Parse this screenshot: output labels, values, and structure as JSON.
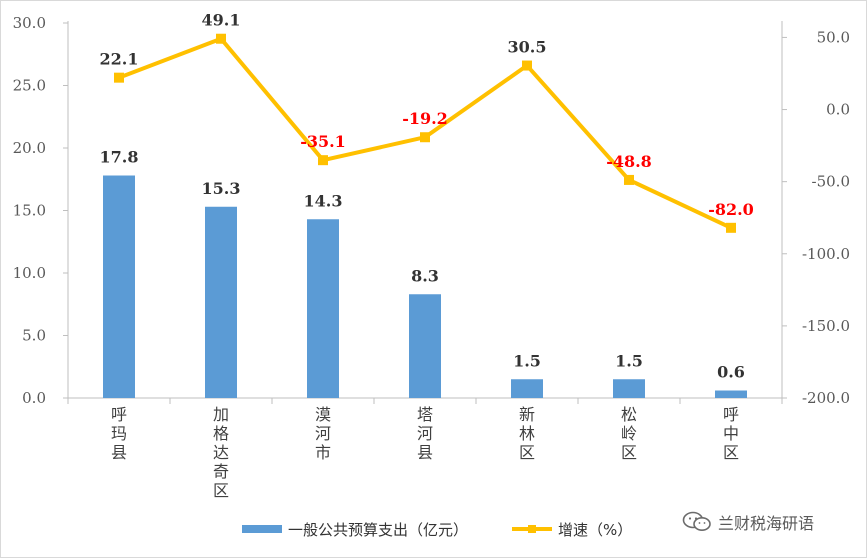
{
  "chart_data": {
    "type": "bar",
    "categories": [
      "呼玛县",
      "加格达奇区",
      "漠河市",
      "塔河县",
      "新林区",
      "松岭区",
      "呼中区"
    ],
    "series": [
      {
        "name": "一般公共预算支出（亿元）",
        "type": "bar",
        "axis": "left",
        "color": "#5b9bd5",
        "values": [
          17.8,
          15.3,
          14.3,
          8.3,
          1.5,
          1.5,
          0.6
        ],
        "labels": [
          "17.8",
          "15.3",
          "14.3",
          "8.3",
          "1.5",
          "1.5",
          "0.6"
        ]
      },
      {
        "name": "增速（%）",
        "type": "line",
        "axis": "right",
        "color": "#ffc000",
        "values": [
          22.1,
          49.1,
          -35.1,
          -19.2,
          30.5,
          -48.8,
          -82.0
        ],
        "labels": [
          "22.1",
          "49.1",
          "-35.1",
          "-19.2",
          "30.5",
          "-48.8",
          "-82.0"
        ]
      }
    ],
    "y_left": {
      "ylim": [
        0,
        30
      ],
      "ticks": [
        "0.0",
        "5.0",
        "10.0",
        "15.0",
        "20.0",
        "25.0",
        "30.0"
      ]
    },
    "y_right": {
      "ylim": [
        -200,
        60
      ],
      "ticks": [
        "-200.0",
        "-150.0",
        "-100.0",
        "-50.0",
        "0.0",
        "50.0"
      ]
    },
    "positive_label_color": "#333333",
    "negative_label_color": "#ff0000",
    "axis_label_color": "#595959",
    "grid": false,
    "legend_position": "bottom"
  },
  "legend": {
    "bar_label": "一般公共预算支出（亿元）",
    "line_label": "增速（%）"
  },
  "watermark": {
    "text": "兰财税海研语",
    "icon": "wechat-icon"
  }
}
